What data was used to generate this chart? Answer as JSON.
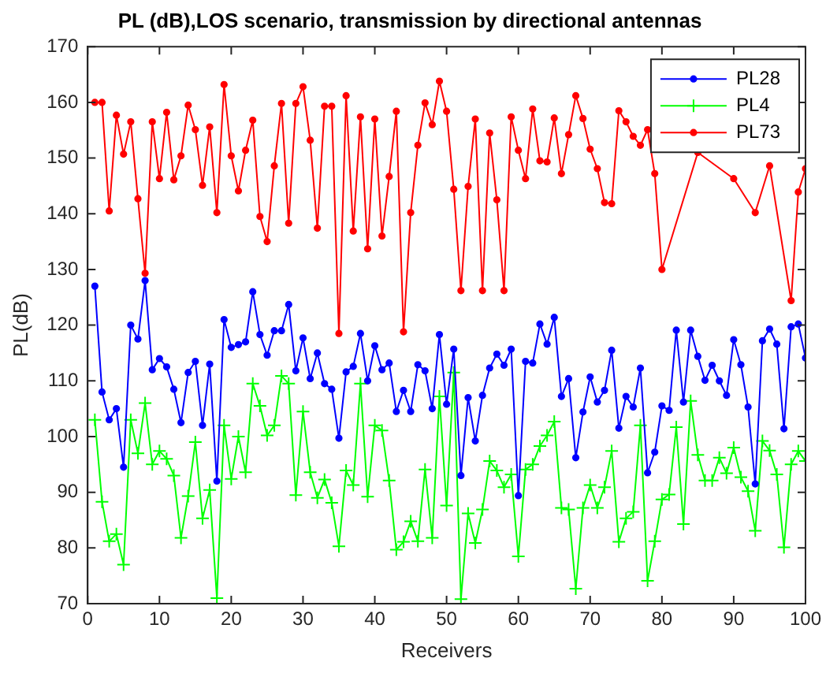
{
  "chart_data": {
    "type": "line",
    "title": "PL (dB),LOS scenario, transmission by directional antennas",
    "xlabel": "Receivers",
    "ylabel": "PL(dB)",
    "x": [
      1,
      2,
      3,
      4,
      5,
      6,
      7,
      8,
      9,
      10,
      11,
      12,
      13,
      14,
      15,
      16,
      17,
      18,
      19,
      20,
      21,
      22,
      23,
      24,
      25,
      26,
      27,
      28,
      29,
      30,
      31,
      32,
      33,
      34,
      35,
      36,
      37,
      38,
      39,
      40,
      41,
      42,
      43,
      44,
      45,
      46,
      47,
      48,
      49,
      50,
      51,
      52,
      53,
      54,
      55,
      56,
      57,
      58,
      59,
      60,
      61,
      62,
      63,
      64,
      65,
      66,
      67,
      68,
      69,
      70,
      71,
      72,
      73,
      74,
      75,
      76,
      77,
      78,
      79,
      80,
      81,
      82,
      83,
      84,
      85,
      86,
      87,
      88,
      89,
      90,
      91,
      92,
      93,
      94,
      95,
      96,
      97,
      98,
      99,
      100
    ],
    "series": [
      {
        "name": "PL28",
        "color": "#0000ff",
        "marker": "circle",
        "values": [
          127,
          108,
          103,
          105,
          94.5,
          120,
          117.5,
          128,
          112,
          114,
          112.5,
          108.5,
          102.5,
          111.5,
          113.5,
          102,
          113,
          92,
          121,
          116,
          116.5,
          117,
          126,
          118.3,
          114.6,
          119,
          119,
          123.7,
          111.8,
          117.7,
          110.4,
          115,
          109.5,
          108.5,
          99.7,
          111.6,
          112.6,
          118.5,
          110,
          116.3,
          112,
          113.2,
          104.5,
          108.3,
          104.5,
          112.9,
          111.8,
          105,
          118.3,
          105.8,
          115.7,
          93,
          107,
          99.2,
          107.4,
          112.3,
          114.8,
          112.8,
          115.7,
          89.4,
          113.5,
          113.2,
          120.2,
          116.6,
          121.4,
          107.2,
          110.4,
          96.2,
          104.4,
          110.7,
          106.2,
          108.3,
          115.5,
          101.5,
          107.2,
          105.3,
          112.3,
          93.5,
          97.2,
          105.5,
          104.7,
          119.1,
          106.2,
          119.1,
          114.4,
          110.1,
          112.8,
          110,
          107.4,
          117.4,
          112.9,
          105.3,
          91.5,
          117.2,
          119.3,
          116.6,
          101.4,
          119.7,
          120.2,
          114.1
        ]
      },
      {
        "name": "PL4",
        "color": "#00ff00",
        "marker": "cross",
        "values": [
          103,
          88.3,
          81.2,
          82.5,
          77,
          103,
          97,
          106,
          95,
          97.4,
          96,
          93,
          81.8,
          89.3,
          99,
          85.3,
          90.4,
          71,
          102,
          92.4,
          100,
          93.6,
          109.5,
          105.5,
          100.2,
          102,
          110.9,
          109.5,
          89.5,
          104.5,
          93.6,
          89,
          92.3,
          88.1,
          80.3,
          93.9,
          91.3,
          109.5,
          89.2,
          102,
          101.1,
          92.1,
          79.7,
          81.1,
          84.8,
          81.2,
          94.1,
          81.8,
          107.2,
          87.6,
          111.5,
          70.8,
          86.2,
          80.9,
          86.9,
          95.6,
          93.9,
          90.9,
          93.2,
          78.5,
          94.1,
          95,
          98.3,
          100.2,
          102.7,
          87.2,
          86.9,
          72.7,
          87.2,
          91.3,
          87.2,
          90.9,
          97.4,
          81.1,
          85.3,
          86.5,
          102,
          74.1,
          81.2,
          88.7,
          89.6,
          101.7,
          84.3,
          106.4,
          96.7,
          92.1,
          92.1,
          96.2,
          93.4,
          98,
          92.7,
          90.2,
          83.1,
          99.2,
          97.5,
          93.2,
          80.1,
          95,
          97.4,
          95.6
        ]
      },
      {
        "name": "PL73",
        "color": "#ff0000",
        "marker": "circle",
        "values": [
          160,
          160,
          140.5,
          157.7,
          150.7,
          156.5,
          142.7,
          129.3,
          156.5,
          146.3,
          158.2,
          146.1,
          150.4,
          159.5,
          155.1,
          145.1,
          155.6,
          140.2,
          163.2,
          150.4,
          144.1,
          151.4,
          156.8,
          139.5,
          135,
          148.6,
          159.8,
          138.3,
          159.8,
          162.8,
          153.2,
          137.4,
          159.3,
          159.3,
          118.5,
          161.2,
          136.9,
          157.4,
          133.7,
          157,
          136,
          146.7,
          158.4,
          118.8,
          140.2,
          152.3,
          159.9,
          156,
          163.8,
          158.4,
          144.4,
          126.2,
          144.9,
          157,
          126.2,
          154.5,
          142.5,
          126.2,
          157.4,
          151.4,
          146.3,
          158.8,
          149.5,
          149.3,
          157.2,
          147.2,
          154.2,
          161.2,
          157.1,
          151.6,
          148.1,
          142,
          141.8,
          158.5,
          156.5,
          153.9,
          152.3,
          155.1,
          147.2,
          130,
          null,
          null,
          null,
          null,
          151,
          null,
          null,
          null,
          null,
          146.3,
          null,
          null,
          140.2,
          null,
          148.6,
          null,
          null,
          124.4,
          143.9,
          148.1
        ]
      }
    ],
    "xlim": [
      0,
      100
    ],
    "xticks": [
      0,
      10,
      20,
      30,
      40,
      50,
      60,
      70,
      80,
      90,
      100
    ],
    "ylim": [
      70,
      170
    ],
    "yticks": [
      70,
      80,
      90,
      100,
      110,
      120,
      130,
      140,
      150,
      160,
      170
    ],
    "grid": false,
    "legend": "top right",
    "line_style": "solid"
  }
}
